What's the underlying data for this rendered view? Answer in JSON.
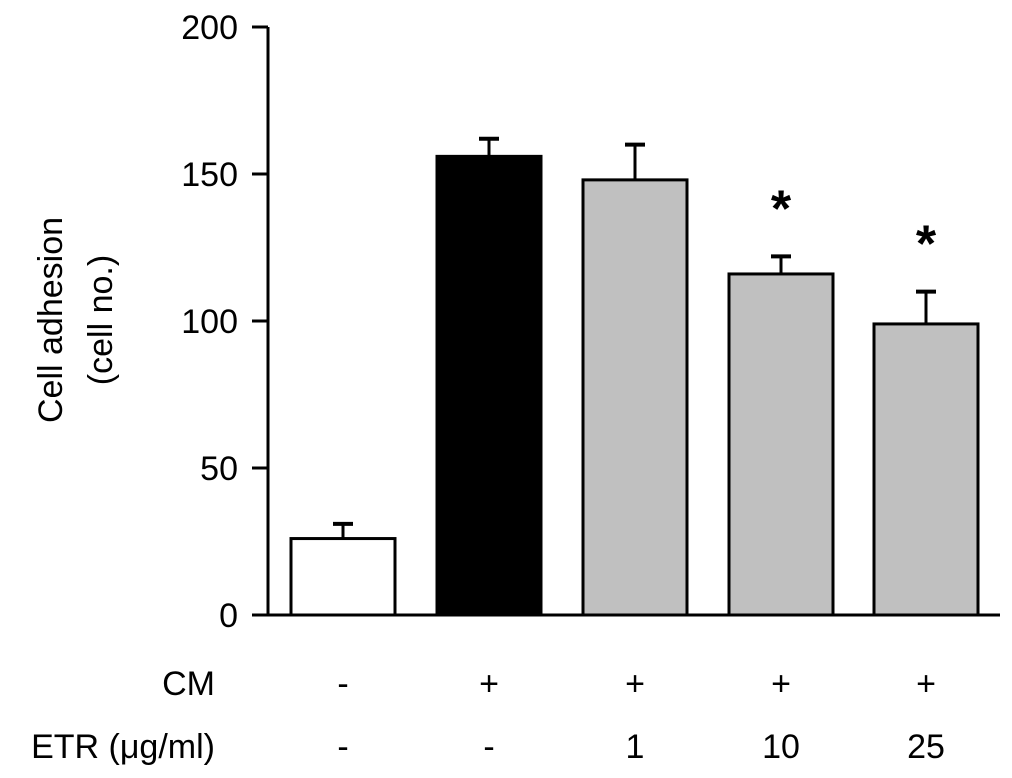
{
  "chart_data": {
    "type": "bar",
    "title": "",
    "ylabel_line1": "Cell adhesion",
    "ylabel_line2": "(cell no.)",
    "ylim": [
      0,
      200
    ],
    "yticks": [
      0,
      50,
      100,
      150,
      200
    ],
    "grid": false,
    "categories": [
      "Control",
      "CM",
      "CM + ETR 1",
      "CM + ETR 10",
      "CM + ETR 25"
    ],
    "values": [
      26,
      156,
      148,
      116,
      99
    ],
    "error_upper": [
      31,
      162,
      160,
      122,
      110
    ],
    "fills": [
      "#ffffff",
      "#000000",
      "#c0c0c0",
      "#c0c0c0",
      "#c0c0c0"
    ],
    "significance": [
      "",
      "",
      "",
      "*",
      "*"
    ],
    "condition_rows": [
      {
        "label": "CM",
        "values": [
          "-",
          "+",
          "+",
          "+",
          "+"
        ]
      },
      {
        "label": "ETR (μg/ml)",
        "values": [
          "-",
          "-",
          "1",
          "10",
          "25"
        ]
      }
    ]
  }
}
